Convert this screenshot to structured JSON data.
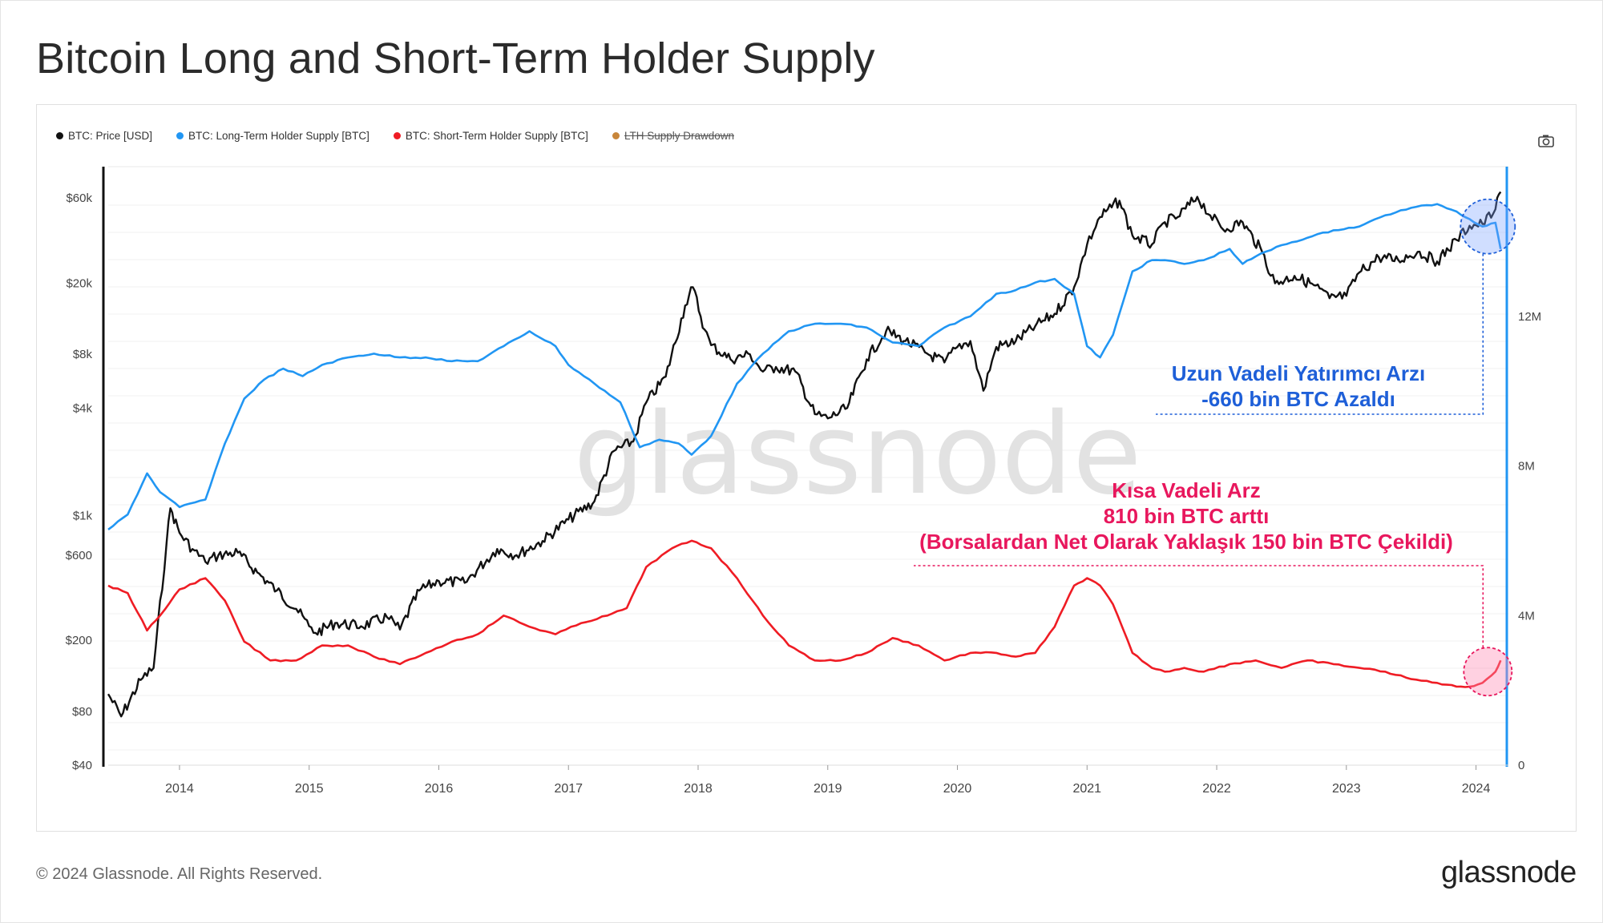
{
  "title": "Bitcoin Long and Short-Term Holder Supply",
  "legend": {
    "price": "BTC: Price [USD]",
    "lth": "BTC: Long-Term Holder Supply [BTC]",
    "sth": "BTC: Short-Term Holder Supply [BTC]",
    "drawdown": "LTH Supply Drawdown"
  },
  "colors": {
    "price": "#111111",
    "lth": "#2196f3",
    "sth": "#ef1c24",
    "drawdown": "#c8863a",
    "ann_lth": "#1e5fd8",
    "ann_sth": "#e8175d"
  },
  "annotations": {
    "lth_line1": "Uzun Vadeli Yatırımcı Arzı",
    "lth_line2": "-660 bin BTC Azaldı",
    "sth_line1": "Kısa Vadeli Arz",
    "sth_line2": "810 bin BTC arttı",
    "sth_line3": "(Borsalardan Net Olarak Yaklaşık 150 bin BTC Çekildi)"
  },
  "watermark": "glassnode",
  "footer": {
    "copyright": "© 2024 Glassnode. All Rights Reserved.",
    "logo": "glassnode"
  },
  "chart_data": {
    "type": "line",
    "x_ticks": [
      "2014",
      "2015",
      "2016",
      "2017",
      "2018",
      "2019",
      "2020",
      "2021",
      "2022",
      "2023",
      "2024"
    ],
    "x_range": [
      2013.45,
      2024.25
    ],
    "y_left": {
      "scale": "log",
      "range": [
        40,
        90000
      ],
      "ticks": [
        40,
        80,
        200,
        600,
        1000,
        4000,
        8000,
        20000,
        60000
      ],
      "tick_labels": [
        "$40",
        "$80",
        "$200",
        "$600",
        "$1k",
        "$4k",
        "$8k",
        "$20k",
        "$60k"
      ]
    },
    "y_right": {
      "scale": "linear",
      "range": [
        0,
        16000000
      ],
      "ticks": [
        0,
        4000000,
        8000000,
        12000000
      ],
      "tick_labels": [
        "0",
        "4M",
        "8M",
        "12M"
      ]
    },
    "series": [
      {
        "name": "BTC: Price [USD]",
        "axis": "left",
        "x": [
          2013.45,
          2013.55,
          2013.7,
          2013.8,
          2013.9,
          2013.93,
          2014.0,
          2014.1,
          2014.2,
          2014.3,
          2014.45,
          2014.6,
          2014.75,
          2014.9,
          2015.0,
          2015.05,
          2015.2,
          2015.4,
          2015.6,
          2015.7,
          2015.85,
          2016.0,
          2016.2,
          2016.45,
          2016.6,
          2016.8,
          2017.0,
          2017.2,
          2017.35,
          2017.5,
          2017.6,
          2017.75,
          2017.9,
          2017.96,
          2018.05,
          2018.1,
          2018.25,
          2018.4,
          2018.5,
          2018.6,
          2018.75,
          2018.9,
          2019.0,
          2019.15,
          2019.3,
          2019.45,
          2019.6,
          2019.75,
          2019.9,
          2020.0,
          2020.1,
          2020.2,
          2020.3,
          2020.45,
          2020.6,
          2020.75,
          2020.9,
          2021.0,
          2021.1,
          2021.25,
          2021.35,
          2021.5,
          2021.6,
          2021.7,
          2021.85,
          2021.95,
          2022.05,
          2022.2,
          2022.35,
          2022.45,
          2022.6,
          2022.75,
          2022.87,
          2023.0,
          2023.1,
          2023.25,
          2023.4,
          2023.55,
          2023.7,
          2023.85,
          2023.95,
          2024.05,
          2024.15,
          2024.19
        ],
        "values": [
          100,
          75,
          120,
          140,
          700,
          1100,
          800,
          650,
          550,
          600,
          620,
          480,
          380,
          300,
          240,
          220,
          250,
          240,
          270,
          230,
          380,
          430,
          420,
          650,
          600,
          720,
          950,
          1200,
          2300,
          2600,
          4300,
          6000,
          15000,
          19000,
          11000,
          9000,
          7500,
          8000,
          6400,
          6800,
          6400,
          3700,
          3500,
          4000,
          7500,
          10800,
          9500,
          8200,
          7200,
          8800,
          9500,
          5000,
          8800,
          9500,
          11500,
          13500,
          19000,
          33000,
          47000,
          58000,
          37000,
          33000,
          44000,
          47000,
          61000,
          48000,
          40000,
          44000,
          30000,
          20000,
          22000,
          19500,
          16500,
          17000,
          23000,
          28000,
          27000,
          30000,
          26500,
          35000,
          42000,
          43000,
          52000,
          65000
        ]
      },
      {
        "name": "BTC: Long-Term Holder Supply [BTC]",
        "axis": "right",
        "x": [
          2013.45,
          2013.6,
          2013.75,
          2013.85,
          2014.0,
          2014.2,
          2014.35,
          2014.5,
          2014.65,
          2014.8,
          2014.95,
          2015.1,
          2015.3,
          2015.5,
          2015.7,
          2015.9,
          2016.1,
          2016.3,
          2016.5,
          2016.7,
          2016.9,
          2017.0,
          2017.2,
          2017.4,
          2017.55,
          2017.7,
          2017.85,
          2017.95,
          2018.1,
          2018.3,
          2018.5,
          2018.7,
          2018.9,
          2019.1,
          2019.3,
          2019.5,
          2019.7,
          2019.9,
          2020.1,
          2020.3,
          2020.45,
          2020.6,
          2020.75,
          2020.9,
          2021.0,
          2021.1,
          2021.2,
          2021.35,
          2021.5,
          2021.6,
          2021.75,
          2021.9,
          2022.1,
          2022.2,
          2022.3,
          2022.5,
          2022.7,
          2022.9,
          2023.1,
          2023.3,
          2023.5,
          2023.7,
          2023.85,
          2023.95,
          2024.05,
          2024.15,
          2024.19
        ],
        "values": [
          6300000,
          6700000,
          7800000,
          7300000,
          6900000,
          7100000,
          8600000,
          9800000,
          10300000,
          10600000,
          10400000,
          10700000,
          10900000,
          11000000,
          10900000,
          10900000,
          10800000,
          10800000,
          11200000,
          11600000,
          11200000,
          10700000,
          10200000,
          9700000,
          8500000,
          8700000,
          8600000,
          8300000,
          8800000,
          10200000,
          11000000,
          11600000,
          11800000,
          11800000,
          11700000,
          11300000,
          11200000,
          11700000,
          12000000,
          12600000,
          12700000,
          12900000,
          13000000,
          12600000,
          11200000,
          10900000,
          11500000,
          13200000,
          13500000,
          13500000,
          13400000,
          13500000,
          13800000,
          13400000,
          13600000,
          13900000,
          14100000,
          14300000,
          14400000,
          14700000,
          14900000,
          15000000,
          14800000,
          14600000,
          14400000,
          14500000,
          13800000
        ]
      },
      {
        "name": "BTC: Short-Term Holder Supply [BTC]",
        "axis": "right",
        "x": [
          2013.45,
          2013.6,
          2013.75,
          2013.85,
          2014.0,
          2014.2,
          2014.35,
          2014.5,
          2014.7,
          2014.9,
          2015.1,
          2015.3,
          2015.5,
          2015.7,
          2015.9,
          2016.1,
          2016.3,
          2016.5,
          2016.7,
          2016.9,
          2017.1,
          2017.3,
          2017.45,
          2017.6,
          2017.8,
          2017.95,
          2018.1,
          2018.3,
          2018.5,
          2018.7,
          2018.9,
          2019.1,
          2019.3,
          2019.5,
          2019.7,
          2019.9,
          2020.1,
          2020.3,
          2020.45,
          2020.6,
          2020.75,
          2020.9,
          2021.0,
          2021.1,
          2021.2,
          2021.35,
          2021.5,
          2021.6,
          2021.75,
          2021.9,
          2022.1,
          2022.3,
          2022.5,
          2022.7,
          2022.9,
          2023.1,
          2023.3,
          2023.5,
          2023.7,
          2023.85,
          2023.95,
          2024.05,
          2024.15,
          2024.19
        ],
        "values": [
          4800000,
          4600000,
          3600000,
          4000000,
          4700000,
          5000000,
          4400000,
          3300000,
          2800000,
          2800000,
          3200000,
          3200000,
          2900000,
          2700000,
          3000000,
          3300000,
          3500000,
          4000000,
          3700000,
          3500000,
          3800000,
          4000000,
          4200000,
          5300000,
          5800000,
          6000000,
          5800000,
          5000000,
          4000000,
          3200000,
          2800000,
          2800000,
          3000000,
          3400000,
          3200000,
          2800000,
          3000000,
          3000000,
          2900000,
          3000000,
          3700000,
          4800000,
          5000000,
          4800000,
          4300000,
          3000000,
          2600000,
          2500000,
          2600000,
          2500000,
          2700000,
          2800000,
          2600000,
          2800000,
          2700000,
          2600000,
          2500000,
          2300000,
          2200000,
          2100000,
          2100000,
          2200000,
          2500000,
          2800000
        ]
      }
    ]
  }
}
